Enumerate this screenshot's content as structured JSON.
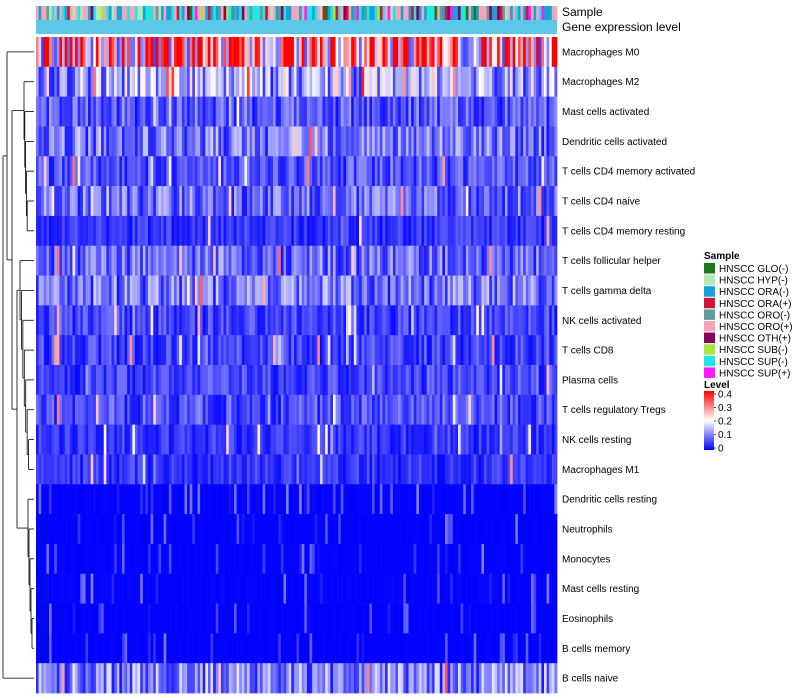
{
  "chart_data": {
    "type": "heatmap",
    "title": "",
    "annotation_labels": {
      "sample": "Sample",
      "gene_level": "Gene expression level"
    },
    "rows": [
      {
        "label": "Macrophages M0",
        "mean": 0.3
      },
      {
        "label": "Macrophages M2",
        "mean": 0.13
      },
      {
        "label": "Mast cells activated",
        "mean": 0.07
      },
      {
        "label": "Dendritic cells activated",
        "mean": 0.09
      },
      {
        "label": "T cells CD4 memory activated",
        "mean": 0.06
      },
      {
        "label": "T cells CD4 naive",
        "mean": 0.08
      },
      {
        "label": "T cells CD4 memory resting",
        "mean": 0.04
      },
      {
        "label": "T cells follicular helper",
        "mean": 0.08
      },
      {
        "label": "T cells gamma delta",
        "mean": 0.09
      },
      {
        "label": "NK cells activated",
        "mean": 0.05
      },
      {
        "label": "T cells CD8",
        "mean": 0.05
      },
      {
        "label": "Plasma cells",
        "mean": 0.05
      },
      {
        "label": "T cells regulatory  Tregs",
        "mean": 0.06
      },
      {
        "label": "NK cells resting",
        "mean": 0.04
      },
      {
        "label": "Macrophages M1",
        "mean": 0.04
      },
      {
        "label": "Dendritic cells resting",
        "mean": 0.015
      },
      {
        "label": "Neutrophils",
        "mean": 0.01
      },
      {
        "label": "Monocytes",
        "mean": 0.012
      },
      {
        "label": "Mast cells resting",
        "mean": 0.015
      },
      {
        "label": "Eosinophils",
        "mean": 0.008
      },
      {
        "label": "B cells memory",
        "mean": 0.008
      },
      {
        "label": "B cells naive",
        "mean": 0.1
      }
    ],
    "n_samples": 200,
    "sample_legend": {
      "title": "Sample",
      "items": [
        {
          "label": "HNSCC GLO(-)",
          "color": "#1a7a1a"
        },
        {
          "label": "HNSCC HYP(-)",
          "color": "#b5e6b5"
        },
        {
          "label": "HNSCC ORA(-)",
          "color": "#12a4d9"
        },
        {
          "label": "HNSCC ORA(+)",
          "color": "#d2143c"
        },
        {
          "label": "HNSCC ORO(-)",
          "color": "#5f9ea0"
        },
        {
          "label": "HNSCC ORO(+)",
          "color": "#f4a6b8"
        },
        {
          "label": "HNSCC OTH(+)",
          "color": "#8b005a"
        },
        {
          "label": "HNSCC SUB(-)",
          "color": "#a8e83a"
        },
        {
          "label": "HNSCC SUP(-)",
          "color": "#22e6e6"
        },
        {
          "label": "HNSCC SUP(+)",
          "color": "#ff1aff"
        }
      ]
    },
    "level_legend": {
      "title": "Level",
      "range": [
        0,
        0.4
      ],
      "ticks": [
        "0.4",
        "0.3",
        "0.2",
        "0.1",
        "0"
      ],
      "colors": [
        "#0000ff",
        "#ffffff",
        "#ff0000"
      ]
    },
    "gene_level_color": "#5bc8ea"
  }
}
